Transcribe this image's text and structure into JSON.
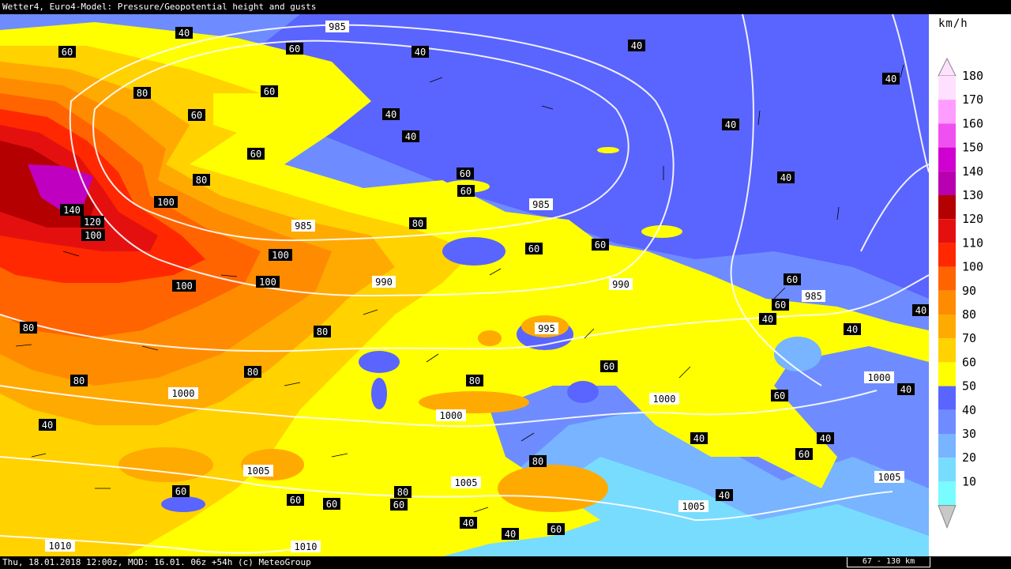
{
  "title": "Wetter4, Euro4-Model: Pressure/Geopotential height and gusts",
  "footer": {
    "info": "Thu, 18.01.2018 12:00z, MOD: 16.01. 06z +54h (c) MeteoGroup",
    "scale": "67 - 130 km"
  },
  "legend": {
    "unit": "km/h",
    "levels": [
      {
        "value": "180",
        "color": "#ffe0ff"
      },
      {
        "value": "170",
        "color": "#ff9cff"
      },
      {
        "value": "160",
        "color": "#f050f0"
      },
      {
        "value": "150",
        "color": "#d000d0"
      },
      {
        "value": "140",
        "color": "#b800b0"
      },
      {
        "value": "130",
        "color": "#b40000"
      },
      {
        "value": "120",
        "color": "#e41010"
      },
      {
        "value": "110",
        "color": "#ff2800"
      },
      {
        "value": "100",
        "color": "#ff6400"
      },
      {
        "value": "90",
        "color": "#ff8c00"
      },
      {
        "value": "80",
        "color": "#ffaa00"
      },
      {
        "value": "70",
        "color": "#ffd200"
      },
      {
        "value": "60",
        "color": "#ffff00"
      },
      {
        "value": "50",
        "color": "#5a64ff"
      },
      {
        "value": "40",
        "color": "#6e8cff"
      },
      {
        "value": "30",
        "color": "#78b4ff"
      },
      {
        "value": "20",
        "color": "#78dcff"
      },
      {
        "value": "10",
        "color": "#78fcff"
      }
    ]
  },
  "isobar_labels": [
    "985",
    "985",
    "985",
    "985",
    "990",
    "990",
    "995",
    "1000",
    "1000",
    "1000",
    "1000",
    "1005",
    "1005",
    "1005",
    "1005",
    "1010",
    "1010"
  ],
  "gust_labels": [
    "40",
    "40",
    "40",
    "40",
    "40",
    "40",
    "40",
    "40",
    "40",
    "40",
    "40",
    "40",
    "40",
    "40",
    "40",
    "40",
    "40",
    "40",
    "60",
    "60",
    "60",
    "60",
    "60",
    "60",
    "60",
    "60",
    "60",
    "60",
    "60",
    "60",
    "60",
    "60",
    "60",
    "60",
    "60",
    "60",
    "60",
    "80",
    "80",
    "80",
    "80",
    "80",
    "80",
    "80",
    "80",
    "80",
    "80",
    "100",
    "100",
    "100",
    "100",
    "100",
    "120",
    "140"
  ]
}
